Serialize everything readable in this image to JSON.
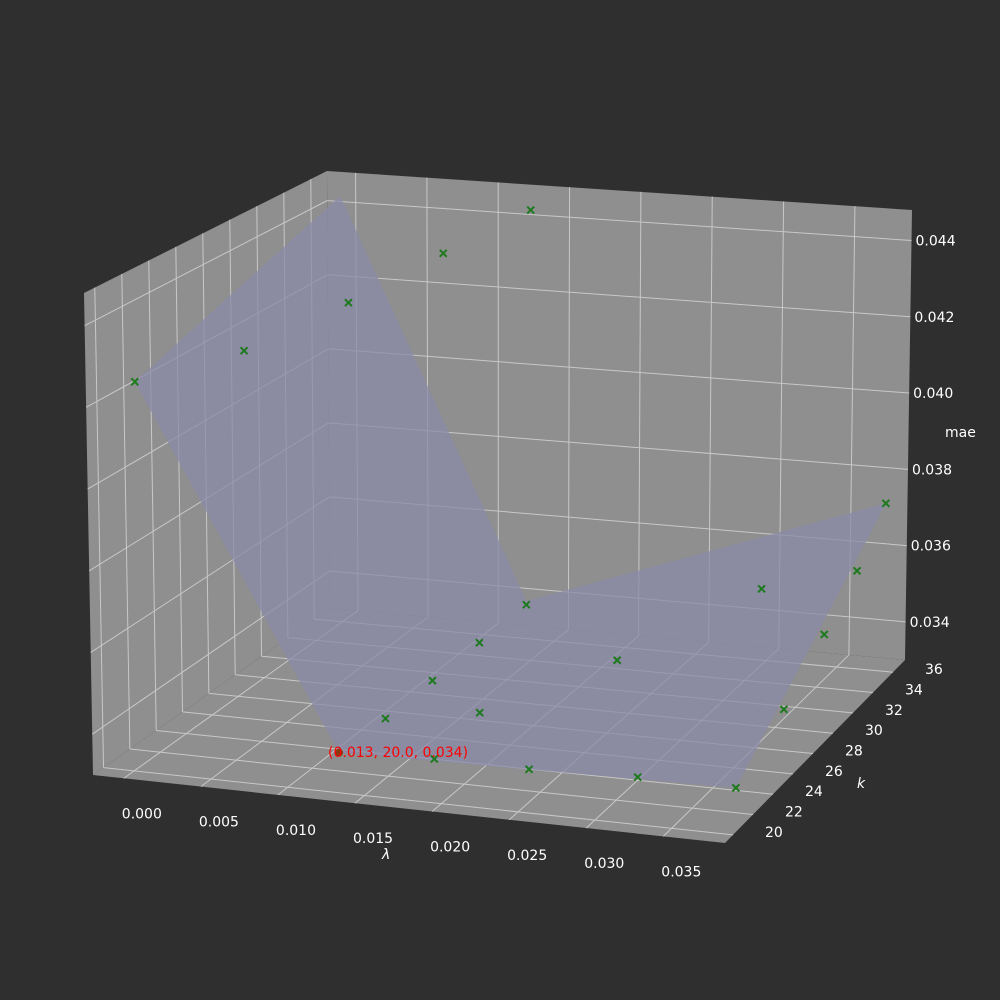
{
  "chart_data": {
    "type": "surface3d",
    "title": "",
    "xlabel": "λ",
    "ylabel": "k",
    "zlabel": "mae",
    "xticks": [
      "0.000",
      "0.005",
      "0.010",
      "0.015",
      "0.020",
      "0.025",
      "0.030",
      "0.035"
    ],
    "yticks": [
      "20",
      "22",
      "24",
      "26",
      "28",
      "30",
      "32",
      "34",
      "36"
    ],
    "zticks": [
      "0.034",
      "0.036",
      "0.038",
      "0.040",
      "0.042",
      "0.044"
    ],
    "xlim": [
      -0.002,
      0.039
    ],
    "ylim": [
      19.2,
      37.2
    ],
    "zlim": [
      0.033,
      0.0448
    ],
    "grid": true,
    "colors": {
      "background": "#2f2f2f",
      "pane": "#8f8f8f",
      "surface": "#8a8aa8",
      "marker": "#1e7a1e",
      "min_point": "#8b3a0f",
      "annotation": "#ff0000"
    },
    "points": [
      {
        "x": 0.0,
        "y": 20,
        "z": 0.0426
      },
      {
        "x": 0.0,
        "y": 36,
        "z": 0.0444
      },
      {
        "x": 0.013,
        "y": 20,
        "z": 0.034
      },
      {
        "x": 0.013,
        "y": 36,
        "z": 0.034
      },
      {
        "x": 0.038,
        "y": 20,
        "z": 0.0342
      },
      {
        "x": 0.038,
        "y": 36,
        "z": 0.0374
      }
    ],
    "markers": [
      [
        0.0,
        20,
        0.0426
      ],
      [
        0.0032,
        24,
        0.0428
      ],
      [
        0.0065,
        28,
        0.0434
      ],
      [
        0.0097,
        32,
        0.044
      ],
      [
        0.013,
        36,
        0.0444
      ],
      [
        0.013,
        24,
        0.0339
      ],
      [
        0.013,
        28,
        0.0339
      ],
      [
        0.013,
        32,
        0.0339
      ],
      [
        0.013,
        36,
        0.0339
      ],
      [
        0.019,
        20,
        0.0341
      ],
      [
        0.025,
        20,
        0.0341
      ],
      [
        0.0318,
        20,
        0.0342
      ],
      [
        0.038,
        20,
        0.0342
      ],
      [
        0.019,
        24,
        0.0343
      ],
      [
        0.025,
        28,
        0.0349
      ],
      [
        0.0318,
        32,
        0.036
      ],
      [
        0.038,
        36,
        0.0374
      ],
      [
        0.038,
        24,
        0.0352
      ],
      [
        0.038,
        28,
        0.0361
      ],
      [
        0.038,
        32,
        0.0367
      ]
    ],
    "minimum": {
      "x": 0.013,
      "y": 20.0,
      "z": 0.034,
      "label": "(0.013, 20.0, 0.034)"
    }
  }
}
